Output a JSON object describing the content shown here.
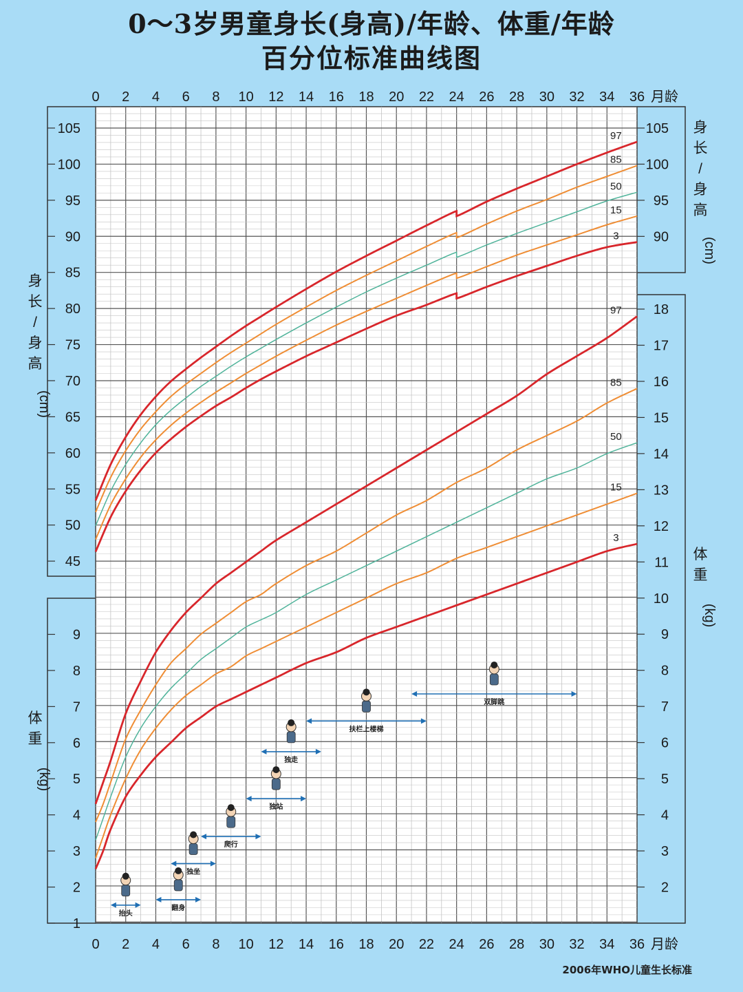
{
  "title_line1": "0～3岁男童身长(身高)/年龄、体重/年龄",
  "title_line2": "百分位标准曲线图",
  "source": "2006年WHO儿童生长标准",
  "colors": {
    "background": "#a9dcf6",
    "grid_bg": "#ffffff",
    "p97_p3": "#d8262b",
    "p85_p15": "#ef8d34",
    "p50": "#4fb39a",
    "arrow": "#1f6fb4"
  },
  "chart_data": {
    "type": "line",
    "x_label": "月龄",
    "x_ticks": [
      0,
      2,
      4,
      6,
      8,
      10,
      12,
      14,
      16,
      18,
      20,
      22,
      24,
      26,
      28,
      30,
      32,
      34,
      36
    ],
    "x_range": [
      0,
      36
    ],
    "length_axis": {
      "label": "身长/身高(cm)",
      "label_chars": [
        "身",
        "长",
        "/",
        "身",
        "高"
      ],
      "unit": "(cm)",
      "left_range": [
        43,
        107
      ],
      "right_range": [
        85,
        107
      ],
      "left_ticks": [
        45,
        50,
        55,
        60,
        65,
        70,
        75,
        80,
        85,
        90,
        95,
        100,
        105
      ],
      "right_ticks": [
        90,
        95,
        100,
        105
      ]
    },
    "weight_axis": {
      "label": "体重(kg)",
      "label_chars": [
        "体",
        "重"
      ],
      "unit": "(kg)",
      "left_range": [
        1,
        10
      ],
      "right_range": [
        1,
        18.5
      ],
      "left_ticks": [
        1,
        2,
        3,
        4,
        5,
        6,
        7,
        8,
        9
      ],
      "right_ticks": [
        2,
        3,
        4,
        5,
        6,
        7,
        8,
        9,
        10,
        11,
        12,
        13,
        14,
        15,
        16,
        17,
        18
      ]
    },
    "length_series": [
      {
        "name": "97",
        "months": [
          0,
          1,
          2,
          3,
          4,
          5,
          6,
          7,
          8,
          9,
          10,
          11,
          12,
          14,
          16,
          18,
          20,
          22,
          24,
          24,
          26,
          28,
          30,
          32,
          34,
          36
        ],
        "values": [
          53.4,
          58.4,
          62.2,
          65.3,
          67.8,
          69.9,
          71.6,
          73.2,
          74.7,
          76.2,
          77.6,
          78.9,
          80.2,
          82.7,
          85.1,
          87.3,
          89.4,
          91.5,
          93.5,
          92.8,
          94.8,
          96.6,
          98.3,
          100.0,
          101.6,
          103.1
        ]
      },
      {
        "name": "85",
        "months": [
          0,
          1,
          2,
          3,
          4,
          5,
          6,
          7,
          8,
          9,
          10,
          11,
          12,
          14,
          16,
          18,
          20,
          22,
          24,
          24,
          26,
          28,
          30,
          32,
          34,
          36
        ],
        "values": [
          51.8,
          56.6,
          60.3,
          63.3,
          65.7,
          67.8,
          69.5,
          71.0,
          72.5,
          73.9,
          75.2,
          76.5,
          77.8,
          80.2,
          82.5,
          84.6,
          86.6,
          88.6,
          90.5,
          89.8,
          91.7,
          93.5,
          95.1,
          96.8,
          98.3,
          99.8
        ]
      },
      {
        "name": "50",
        "months": [
          0,
          1,
          2,
          3,
          4,
          5,
          6,
          7,
          8,
          9,
          10,
          11,
          12,
          14,
          16,
          18,
          20,
          22,
          24,
          24,
          26,
          28,
          30,
          32,
          34,
          36
        ],
        "values": [
          49.9,
          54.7,
          58.4,
          61.4,
          63.9,
          65.9,
          67.6,
          69.2,
          70.6,
          72.0,
          73.3,
          74.5,
          75.7,
          78.0,
          80.2,
          82.3,
          84.2,
          86.0,
          87.8,
          87.1,
          88.8,
          90.4,
          91.9,
          93.4,
          94.9,
          96.1
        ]
      },
      {
        "name": "15",
        "months": [
          0,
          1,
          2,
          3,
          4,
          5,
          6,
          7,
          8,
          9,
          10,
          11,
          12,
          14,
          16,
          18,
          20,
          22,
          24,
          24,
          26,
          28,
          30,
          32,
          34,
          36
        ],
        "values": [
          48.0,
          52.8,
          56.4,
          59.4,
          61.8,
          63.8,
          65.5,
          67.0,
          68.4,
          69.7,
          71.0,
          72.2,
          73.4,
          75.6,
          77.7,
          79.6,
          81.4,
          83.2,
          84.9,
          84.2,
          85.8,
          87.4,
          88.8,
          90.2,
          91.6,
          92.8
        ]
      },
      {
        "name": "3",
        "months": [
          0,
          1,
          2,
          3,
          4,
          5,
          6,
          7,
          8,
          9,
          10,
          11,
          12,
          14,
          16,
          18,
          20,
          22,
          24,
          24,
          26,
          28,
          30,
          32,
          34,
          36
        ],
        "values": [
          46.3,
          51.1,
          54.7,
          57.6,
          60.0,
          61.9,
          63.6,
          65.1,
          66.5,
          67.7,
          69.0,
          70.2,
          71.3,
          73.4,
          75.3,
          77.2,
          79.0,
          80.5,
          82.1,
          81.4,
          83.0,
          84.5,
          85.9,
          87.3,
          88.5,
          89.2
        ]
      }
    ],
    "weight_series": [
      {
        "name": "97",
        "months": [
          0,
          0.5,
          1,
          2,
          3,
          4,
          5,
          6,
          7,
          8,
          9,
          10,
          11,
          12,
          14,
          16,
          18,
          20,
          22,
          24,
          26,
          28,
          30,
          32,
          34,
          36
        ],
        "values": [
          4.3,
          4.9,
          5.5,
          6.8,
          7.7,
          8.5,
          9.1,
          9.6,
          10.0,
          10.4,
          10.7,
          11.0,
          11.3,
          11.6,
          12.1,
          12.6,
          13.1,
          13.6,
          14.1,
          14.6,
          15.1,
          15.6,
          16.2,
          16.7,
          17.2,
          17.8
        ]
      },
      {
        "name": "85",
        "months": [
          0,
          0.5,
          1,
          2,
          3,
          4,
          5,
          6,
          7,
          8,
          9,
          10,
          11,
          12,
          14,
          16,
          18,
          20,
          22,
          24,
          26,
          28,
          30,
          32,
          34,
          36
        ],
        "values": [
          3.8,
          4.3,
          4.9,
          6.1,
          6.9,
          7.6,
          8.2,
          8.6,
          9.0,
          9.3,
          9.6,
          9.9,
          10.1,
          10.4,
          10.9,
          11.3,
          11.8,
          12.3,
          12.7,
          13.2,
          13.6,
          14.1,
          14.5,
          14.9,
          15.4,
          15.8
        ]
      },
      {
        "name": "50",
        "months": [
          0,
          0.5,
          1,
          2,
          3,
          4,
          5,
          6,
          7,
          8,
          9,
          10,
          11,
          12,
          14,
          16,
          18,
          20,
          22,
          24,
          26,
          28,
          30,
          32,
          34,
          36
        ],
        "values": [
          3.3,
          3.9,
          4.5,
          5.6,
          6.4,
          7.0,
          7.5,
          7.9,
          8.3,
          8.6,
          8.9,
          9.2,
          9.4,
          9.6,
          10.1,
          10.5,
          10.9,
          11.3,
          11.7,
          12.1,
          12.5,
          12.9,
          13.3,
          13.6,
          14.0,
          14.3
        ]
      },
      {
        "name": "15",
        "months": [
          0,
          0.5,
          1,
          2,
          3,
          4,
          5,
          6,
          7,
          8,
          9,
          10,
          11,
          12,
          14,
          16,
          18,
          20,
          22,
          24,
          26,
          28,
          30,
          32,
          34,
          36
        ],
        "values": [
          2.8,
          3.4,
          4.0,
          5.0,
          5.8,
          6.4,
          6.9,
          7.3,
          7.6,
          7.9,
          8.1,
          8.4,
          8.6,
          8.8,
          9.2,
          9.6,
          10.0,
          10.4,
          10.7,
          11.1,
          11.4,
          11.7,
          12.0,
          12.3,
          12.6,
          12.9
        ]
      },
      {
        "name": "3",
        "months": [
          0,
          0.5,
          1,
          2,
          3,
          4,
          5,
          6,
          7,
          8,
          9,
          10,
          11,
          12,
          14,
          16,
          18,
          20,
          22,
          24,
          26,
          28,
          30,
          32,
          34,
          36
        ],
        "values": [
          2.5,
          3.0,
          3.6,
          4.5,
          5.1,
          5.6,
          6.0,
          6.4,
          6.7,
          7.0,
          7.2,
          7.4,
          7.6,
          7.8,
          8.2,
          8.5,
          8.9,
          9.2,
          9.5,
          9.8,
          10.1,
          10.4,
          10.7,
          11.0,
          11.3,
          11.5
        ]
      }
    ],
    "milestones": [
      {
        "label": "抬头",
        "start": 1,
        "end": 3,
        "weight_level": 1.5
      },
      {
        "label": "翻身",
        "start": 4,
        "end": 7,
        "weight_level": 1.65
      },
      {
        "label": "独坐",
        "start": 5,
        "end": 8,
        "weight_level": 2.65
      },
      {
        "label": "爬行",
        "start": 7,
        "end": 11,
        "weight_level": 3.4
      },
      {
        "label": "独站",
        "start": 10,
        "end": 14,
        "weight_level": 4.45
      },
      {
        "label": "独走",
        "start": 11,
        "end": 15,
        "weight_level": 5.75
      },
      {
        "label": "扶栏上楼梯",
        "start": 14,
        "end": 22,
        "weight_level": 6.6
      },
      {
        "label": "双脚跳",
        "start": 21,
        "end": 32,
        "weight_level": 7.35
      }
    ]
  }
}
